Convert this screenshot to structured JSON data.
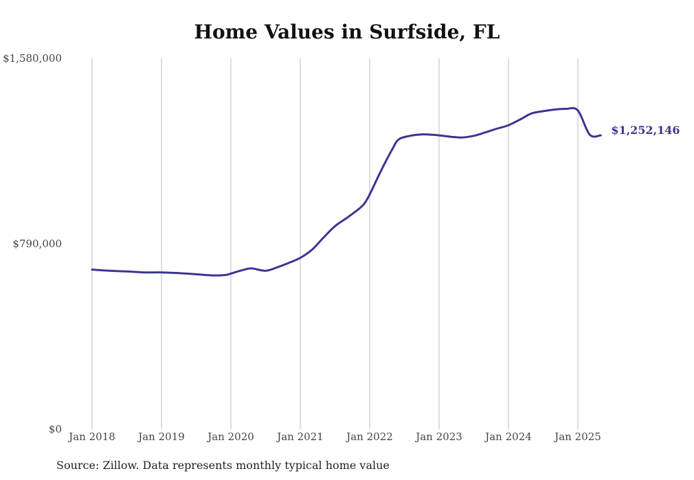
{
  "chart_data": {
    "type": "line",
    "title": "Home Values in Surfside, FL",
    "source": "Source: Zillow. Data represents monthly typical home value",
    "xlabel": "",
    "ylabel": "",
    "ylim": [
      0,
      1580000
    ],
    "y_ticks": [
      {
        "value": 0,
        "label": "$0"
      },
      {
        "value": 790000,
        "label": "$790,000"
      },
      {
        "value": 1580000,
        "label": "$1,580,000"
      }
    ],
    "x_ticks": [
      {
        "value": 2018.0,
        "label": "Jan 2018"
      },
      {
        "value": 2019.0,
        "label": "Jan 2019"
      },
      {
        "value": 2020.0,
        "label": "Jan 2020"
      },
      {
        "value": 2021.0,
        "label": "Jan 2021"
      },
      {
        "value": 2022.0,
        "label": "Jan 2022"
      },
      {
        "value": 2023.0,
        "label": "Jan 2023"
      },
      {
        "value": 2024.0,
        "label": "Jan 2024"
      },
      {
        "value": 2025.0,
        "label": "Jan 2025"
      }
    ],
    "xlim": [
      2017.8,
      2026.2
    ],
    "grid": {
      "vertical": true,
      "horizontal": false
    },
    "line_color": "#3a3591",
    "grid_color": "#bbbbbb",
    "end_label": "$1,252,146",
    "series": [
      {
        "x": [
          2018.0,
          2018.25,
          2018.5,
          2018.75,
          2019.0,
          2019.25,
          2019.5,
          2019.75,
          2019.92,
          2020.0,
          2020.17,
          2020.3,
          2020.5,
          2020.67,
          2020.83,
          2021.0,
          2021.17,
          2021.33,
          2021.5,
          2021.67,
          2021.83,
          2021.92,
          2022.0,
          2022.17,
          2022.33,
          2022.42,
          2022.58,
          2022.75,
          2022.92,
          2023.0,
          2023.17,
          2023.33,
          2023.5,
          2023.67,
          2023.83,
          2024.0,
          2024.17,
          2024.33,
          2024.5,
          2024.67,
          2024.83,
          2025.0,
          2025.17,
          2025.33
        ],
        "values": [
          680000,
          675000,
          672000,
          668000,
          668000,
          665000,
          660000,
          655000,
          657000,
          663000,
          678000,
          685000,
          675000,
          690000,
          708000,
          730000,
          765000,
          815000,
          865000,
          900000,
          935000,
          960000,
          1000000,
          1105000,
          1195000,
          1235000,
          1250000,
          1256000,
          1254000,
          1252000,
          1246000,
          1243000,
          1250000,
          1265000,
          1280000,
          1295000,
          1320000,
          1345000,
          1355000,
          1362000,
          1365000,
          1358000,
          1255000,
          1252146
        ]
      }
    ]
  }
}
